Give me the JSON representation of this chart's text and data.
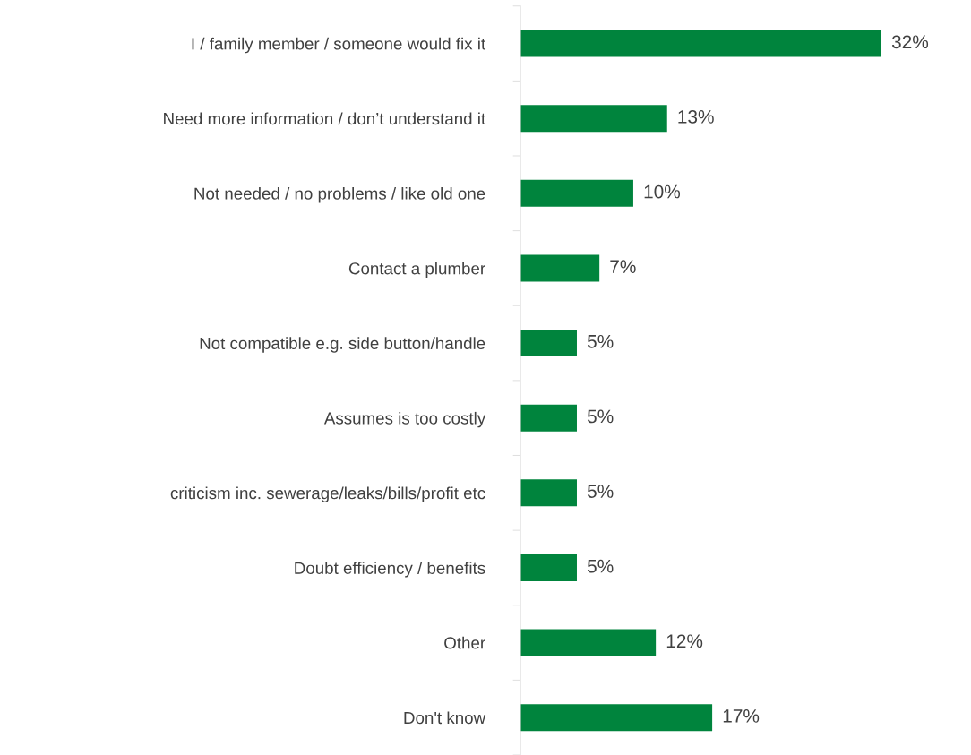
{
  "chart_data": {
    "type": "bar",
    "orientation": "horizontal",
    "categories": [
      "I / family member / someone would fix it",
      "Need more information / don’t understand it",
      "Not needed / no problems / like old one",
      "Contact a plumber",
      "Not compatible e.g. side button/handle",
      "Assumes is too costly",
      "criticism inc. sewerage/leaks/bills/profit etc",
      "Doubt efficiency / benefits",
      "Other",
      "Don't know"
    ],
    "values": [
      32,
      13,
      10,
      7,
      5,
      5,
      5,
      5,
      12,
      17
    ],
    "value_labels": [
      "32%",
      "13%",
      "10%",
      "7%",
      "5%",
      "5%",
      "5%",
      "5%",
      "12%",
      "17%"
    ],
    "color": "#00843d",
    "tick_labels": "y",
    "grid": false,
    "legend": false
  }
}
